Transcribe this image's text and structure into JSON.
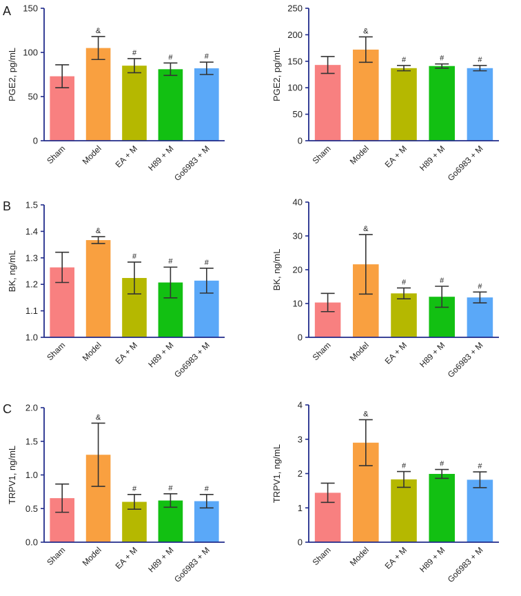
{
  "panel_letters": [
    "A",
    "B",
    "C"
  ],
  "colors": {
    "axis": "#1f2a8a",
    "errorbar": "#333333",
    "bars": [
      "#f88080",
      "#f9a040",
      "#b5b800",
      "#12c012",
      "#5aa8f8"
    ]
  },
  "chart_data": [
    {
      "type": "bar",
      "panel": "A",
      "title": "",
      "xlabel": "",
      "ylabel": "PGE2, pg/mL",
      "categories": [
        "Sham",
        "Model",
        "EA + M",
        "H89 + M",
        "Go6983 + M"
      ],
      "values": [
        73,
        105,
        85,
        81,
        82
      ],
      "errors": [
        13,
        13,
        8,
        7,
        7
      ],
      "annotations": [
        "",
        "&",
        "#",
        "#",
        "#"
      ],
      "ylim": [
        0,
        150
      ],
      "yticks": [
        0,
        50,
        100,
        150
      ],
      "ytick_labels": [
        "0",
        "50",
        "100",
        "150"
      ]
    },
    {
      "type": "bar",
      "panel": "A",
      "title": "",
      "xlabel": "",
      "ylabel": "PGE2, pg/mL",
      "categories": [
        "Sham",
        "Model",
        "EA + M",
        "H89 + M",
        "Go6983 + M"
      ],
      "values": [
        143,
        172,
        137,
        141,
        137
      ],
      "errors": [
        16,
        24,
        5,
        4,
        5
      ],
      "annotations": [
        "",
        "&",
        "#",
        "#",
        "#"
      ],
      "ylim": [
        0,
        250
      ],
      "yticks": [
        0,
        50,
        100,
        150,
        200,
        250
      ],
      "ytick_labels": [
        "0",
        "50",
        "100",
        "150",
        "200",
        "250"
      ]
    },
    {
      "type": "bar",
      "panel": "B",
      "title": "",
      "xlabel": "",
      "ylabel": "BK, ng/mL",
      "categories": [
        "Sham",
        "Model",
        "EA + M",
        "H89 + M",
        "Go6983 + M"
      ],
      "values": [
        1.264,
        1.367,
        1.224,
        1.207,
        1.214
      ],
      "errors": [
        0.057,
        0.013,
        0.06,
        0.058,
        0.047
      ],
      "annotations": [
        "",
        "&",
        "#",
        "#",
        "#"
      ],
      "ylim": [
        1.0,
        1.5
      ],
      "yticks": [
        1.0,
        1.1,
        1.2,
        1.3,
        1.4,
        1.5
      ],
      "ytick_labels": [
        "1.0",
        "1.1",
        "1.2",
        "1.3",
        "1.4",
        "1.5"
      ]
    },
    {
      "type": "bar",
      "panel": "B",
      "title": "",
      "xlabel": "",
      "ylabel": "BK, ng/mL",
      "categories": [
        "Sham",
        "Model",
        "EA + M",
        "H89 + M",
        "Go6983 + M"
      ],
      "values": [
        10.3,
        21.6,
        13.0,
        12.0,
        11.8
      ],
      "errors": [
        2.7,
        8.8,
        1.6,
        3.1,
        1.6
      ],
      "annotations": [
        "",
        "&",
        "#",
        "#",
        "#"
      ],
      "ylim": [
        0,
        40
      ],
      "yticks": [
        0,
        10,
        20,
        30,
        40
      ],
      "ytick_labels": [
        "0",
        "10",
        "20",
        "30",
        "40"
      ]
    },
    {
      "type": "bar",
      "panel": "C",
      "title": "",
      "xlabel": "",
      "ylabel": "TRPV1, ng/mL",
      "categories": [
        "Sham",
        "Model",
        "EA + M",
        "H89 + M",
        "Go6983 + M"
      ],
      "values": [
        0.655,
        1.3,
        0.6,
        0.62,
        0.61
      ],
      "errors": [
        0.21,
        0.47,
        0.11,
        0.1,
        0.1
      ],
      "annotations": [
        "",
        "&",
        "#",
        "#",
        "#"
      ],
      "ylim": [
        0,
        2.0
      ],
      "yticks": [
        0,
        0.5,
        1.0,
        1.5,
        2.0
      ],
      "ytick_labels": [
        "0.0",
        "0.5",
        "1.0",
        "1.5",
        "2.0"
      ]
    },
    {
      "type": "bar",
      "panel": "C",
      "title": "",
      "xlabel": "",
      "ylabel": "TRPV1, ng/mL",
      "categories": [
        "Sham",
        "Model",
        "EA + M",
        "H89 + M",
        "Go6983 + M"
      ],
      "values": [
        1.44,
        2.9,
        1.83,
        1.99,
        1.82
      ],
      "errors": [
        0.28,
        0.67,
        0.23,
        0.13,
        0.23
      ],
      "annotations": [
        "",
        "&",
        "#",
        "#",
        "#"
      ],
      "ylim": [
        0,
        4
      ],
      "yticks": [
        0,
        1,
        2,
        3,
        4
      ],
      "ytick_labels": [
        "0",
        "1",
        "2",
        "3",
        "4"
      ]
    }
  ]
}
